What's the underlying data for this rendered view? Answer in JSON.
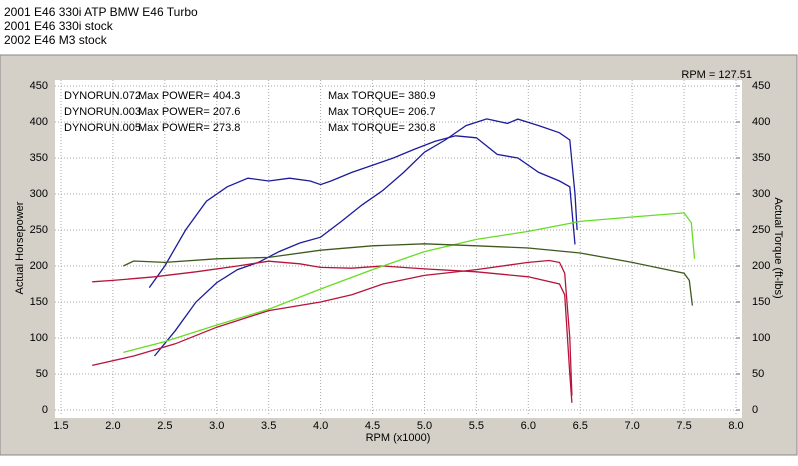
{
  "chart_data": {
    "type": "line",
    "title_lines": [
      "2001 E46 330i ATP BMW E46 Turbo",
      "2001 E46 330i stock",
      "2002 E46 M3 stock"
    ],
    "rpm_readout": "RPM = 127.51",
    "xlabel": "RPM (x1000)",
    "ylabel": "Actual Horsepower",
    "y2label": "Actual Torque (ft-lbs)",
    "xlim": [
      1.5,
      8.0
    ],
    "xticks": [
      1.5,
      {
        "value": 2,
        "label": "2.0"
      },
      2.5,
      {
        "value": 3,
        "label": "3.0"
      },
      3.5,
      {
        "value": 4,
        "label": "4.0"
      },
      4.5,
      {
        "value": 5,
        "label": "5.0"
      },
      5.5,
      {
        "value": 6,
        "label": "6.0"
      },
      6.5,
      {
        "value": 7,
        "label": "7.0"
      },
      7.5,
      {
        "value": 8,
        "label": "8.0"
      }
    ],
    "ylim": [
      0,
      450
    ],
    "yticks": [
      0,
      50,
      100,
      150,
      200,
      250,
      300,
      350,
      400,
      450
    ],
    "y2lim": [
      0,
      450
    ],
    "y2ticks": [
      0,
      50,
      100,
      150,
      200,
      250,
      300,
      350,
      400,
      450
    ],
    "grid": true,
    "runs": [
      {
        "name": "DYNORUN.072",
        "max_power": "Max POWER= 404.3",
        "max_torque": "Max TORQUE= 380.9",
        "power": {
          "color": "#1c1c9c",
          "x": [
            2.4,
            2.6,
            2.8,
            3.0,
            3.2,
            3.4,
            3.6,
            3.8,
            4.0,
            4.2,
            4.4,
            4.6,
            4.8,
            5.0,
            5.2,
            5.4,
            5.6,
            5.8,
            5.9,
            6.1,
            6.3,
            6.4,
            6.45,
            6.47
          ],
          "values": [
            75,
            110,
            150,
            177,
            195,
            205,
            220,
            232,
            240,
            262,
            285,
            305,
            330,
            358,
            375,
            395,
            404.3,
            398,
            404,
            395,
            385,
            375,
            300,
            250
          ]
        },
        "torque": {
          "color": "#1c1c9c",
          "axis": "y2",
          "x": [
            2.35,
            2.5,
            2.7,
            2.9,
            3.1,
            3.3,
            3.5,
            3.7,
            3.9,
            4.0,
            4.1,
            4.3,
            4.5,
            4.7,
            4.9,
            5.1,
            5.3,
            5.5,
            5.7,
            5.9,
            6.1,
            6.3,
            6.4,
            6.45
          ],
          "values": [
            170,
            200,
            250,
            290,
            310,
            322,
            318,
            322,
            318,
            313,
            318,
            330,
            340,
            350,
            362,
            373,
            380.9,
            378,
            355,
            350,
            330,
            318,
            310,
            230
          ]
        }
      },
      {
        "name": "DYNORUN.003",
        "max_power": "Max POWER= 207.6",
        "max_torque": "Max TORQUE= 206.7",
        "power": {
          "color": "#b8133c",
          "x": [
            1.8,
            2.2,
            2.6,
            3.0,
            3.5,
            4.0,
            4.3,
            4.6,
            5.0,
            5.5,
            6.0,
            6.2,
            6.3,
            6.35,
            6.4,
            6.42
          ],
          "values": [
            62,
            75,
            92,
            115,
            138,
            150,
            160,
            175,
            187,
            195,
            205,
            207.6,
            205,
            190,
            100,
            20
          ]
        },
        "torque": {
          "color": "#b8133c",
          "axis": "y2",
          "x": [
            1.8,
            2.0,
            2.4,
            2.8,
            3.2,
            3.5,
            3.8,
            4.0,
            4.3,
            4.6,
            5.0,
            5.5,
            6.0,
            6.3,
            6.35,
            6.4,
            6.42
          ],
          "values": [
            178,
            180,
            185,
            192,
            200,
            206.7,
            203,
            198,
            197,
            200,
            196,
            192,
            185,
            175,
            160,
            50,
            10
          ]
        }
      },
      {
        "name": "DYNORUN.005",
        "max_power": "Max POWER= 273.8",
        "max_torque": "Max TORQUE= 230.8",
        "power": {
          "color": "#66dd22",
          "x": [
            2.1,
            2.5,
            3.0,
            3.5,
            4.0,
            4.5,
            5.0,
            5.5,
            6.0,
            6.5,
            7.0,
            7.5,
            7.57,
            7.6
          ],
          "values": [
            80,
            95,
            118,
            140,
            168,
            195,
            220,
            237,
            248,
            262,
            268,
            273.8,
            260,
            210
          ]
        },
        "torque": {
          "color": "#3d5a1e",
          "axis": "y2",
          "x": [
            2.1,
            2.2,
            2.5,
            3.0,
            3.5,
            4.0,
            4.5,
            5.0,
            5.5,
            6.0,
            6.5,
            7.0,
            7.5,
            7.55,
            7.58
          ],
          "values": [
            200,
            207,
            205,
            210,
            212,
            222,
            228,
            230.8,
            228,
            225,
            218,
            205,
            190,
            180,
            145
          ]
        }
      }
    ]
  }
}
